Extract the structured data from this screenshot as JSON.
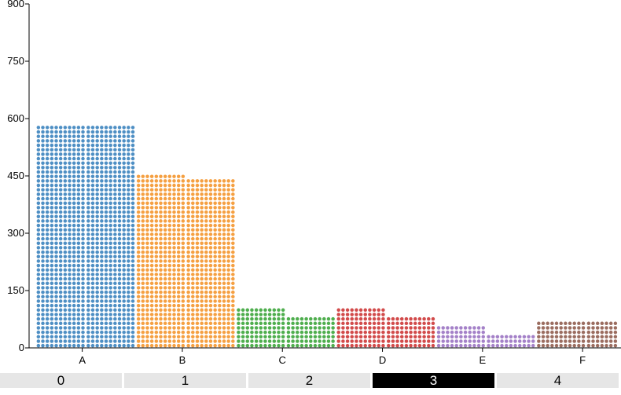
{
  "chart_data": {
    "type": "bar",
    "style": "unit dot waffle, two adjacent stacks per category",
    "categories": [
      "A",
      "B",
      "C",
      "D",
      "E",
      "F"
    ],
    "colors": [
      "#4e8fc4",
      "#f5a042",
      "#4fae4e",
      "#d24b4b",
      "#a481c8",
      "#9b6d60"
    ],
    "series": [
      {
        "values": [
          580,
          460,
          100,
          100,
          55,
          70
        ]
      },
      {
        "values": [
          580,
          445,
          85,
          85,
          40,
          70
        ]
      }
    ],
    "ylim": [
      0,
      900
    ],
    "yticks": [
      0,
      150,
      300,
      450,
      600,
      750,
      900
    ],
    "grid": false,
    "legend": "none"
  },
  "tabs": {
    "items": [
      "0",
      "1",
      "2",
      "3",
      "4",
      ""
    ],
    "selected": "3"
  }
}
